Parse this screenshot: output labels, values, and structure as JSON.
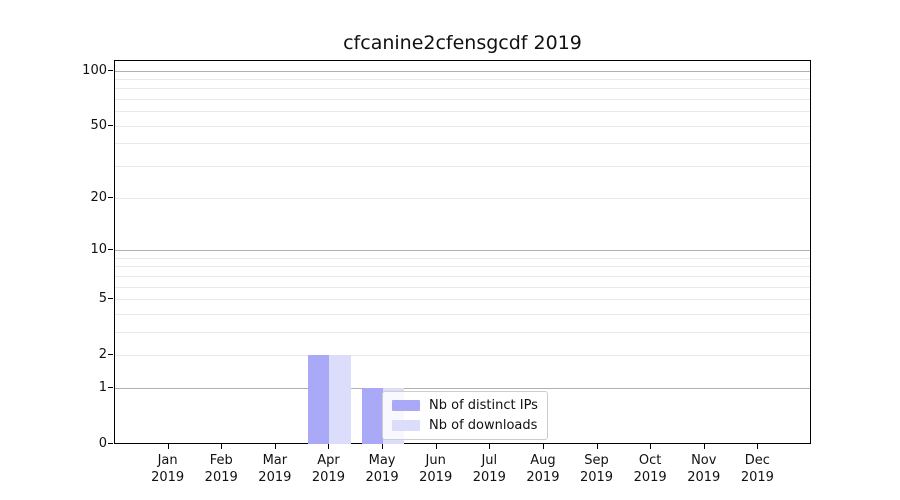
{
  "chart_data": {
    "type": "bar",
    "title": "cfcanine2cfensgcdf 2019",
    "x_axis": {
      "months": [
        "Jan",
        "Feb",
        "Mar",
        "Apr",
        "May",
        "Jun",
        "Jul",
        "Aug",
        "Sep",
        "Oct",
        "Nov",
        "Dec"
      ],
      "year": "2019"
    },
    "y_axis": {
      "scale": "log1p",
      "ticks": [
        0,
        1,
        2,
        5,
        10,
        20,
        50,
        100
      ],
      "major_gridlines": [
        1,
        10,
        100
      ],
      "minor_gridlines": [
        2,
        3,
        4,
        5,
        6,
        7,
        8,
        9,
        20,
        30,
        40,
        50,
        60,
        70,
        80,
        90
      ],
      "max": 100
    },
    "series": [
      {
        "name": "Nb of distinct IPs",
        "color": "#a9a9f7",
        "values": [
          0,
          0,
          0,
          2,
          1,
          0,
          0,
          0,
          0,
          0,
          0,
          0
        ]
      },
      {
        "name": "Nb of downloads",
        "color": "#dcdcfb",
        "values": [
          0,
          0,
          0,
          2,
          1,
          0,
          0,
          0,
          0,
          0,
          0,
          0
        ]
      }
    ],
    "legend_position": "lower center",
    "colors": {
      "grid_major": "#b0b0b0",
      "grid_minor": "#e9e9e9",
      "axis": "#000000",
      "background": "#ffffff"
    }
  }
}
